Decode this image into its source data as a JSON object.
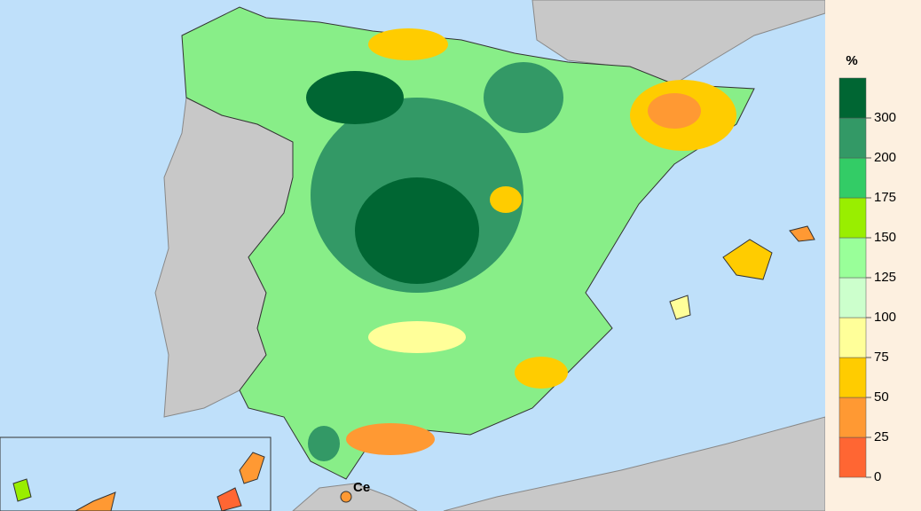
{
  "legend": {
    "unit": "%",
    "ticks": [
      0,
      25,
      50,
      75,
      100,
      125,
      150,
      175,
      200,
      300
    ],
    "colors": [
      "#ff6633",
      "#ff9933",
      "#ffcc00",
      "#ffff99",
      "#ccffcc",
      "#99ff99",
      "#99ee00",
      "#33cc66",
      "#339966",
      "#006633"
    ]
  },
  "labels": {
    "ceuta": "Ce"
  }
}
